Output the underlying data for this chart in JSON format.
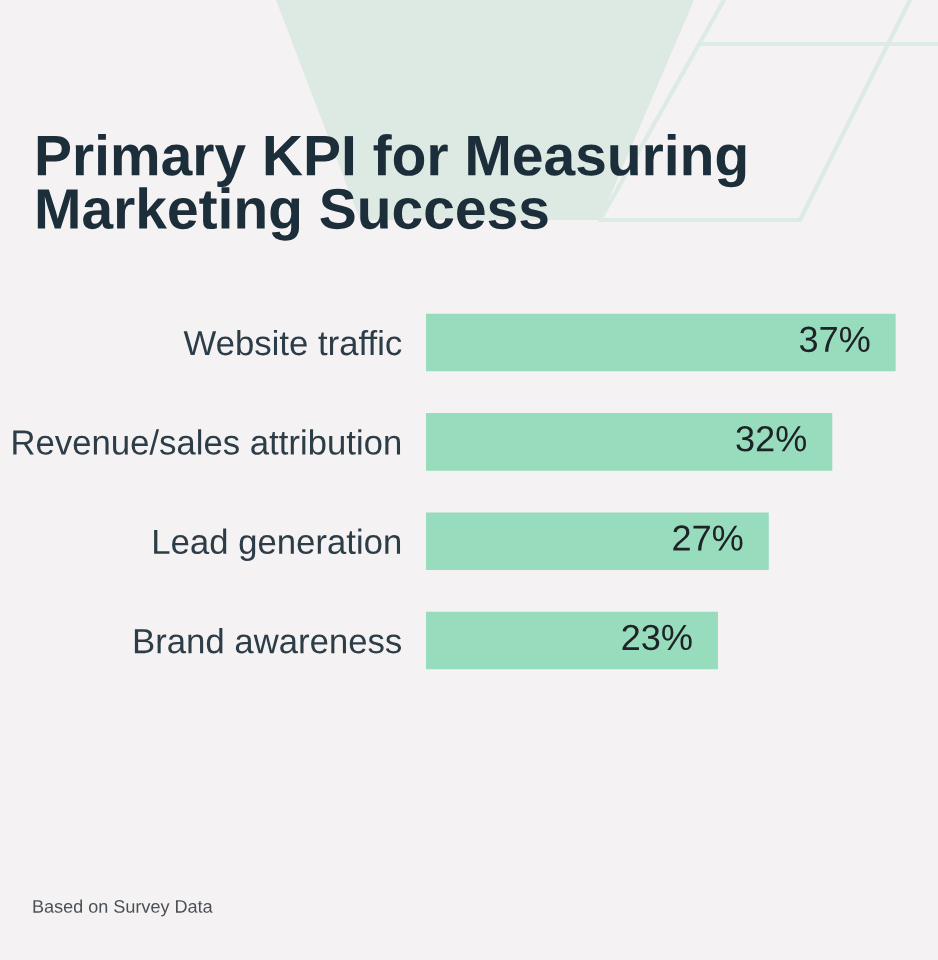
{
  "chart_data": {
    "type": "bar",
    "orientation": "horizontal",
    "title": "Primary KPI for Measuring\nMarketing Success",
    "categories": [
      "Website traffic",
      "Revenue/sales attribution",
      "Lead generation",
      "Brand awareness"
    ],
    "values": [
      37,
      32,
      27,
      23
    ],
    "value_labels": [
      "37%",
      "32%",
      "27%",
      "23%"
    ],
    "color": "#97dcbd",
    "tick_labels": "y",
    "annotations": [
      "Based on Survey Data"
    ]
  }
}
